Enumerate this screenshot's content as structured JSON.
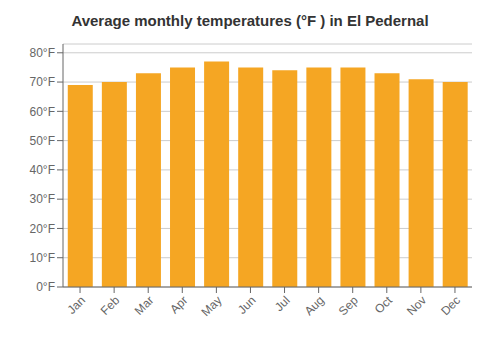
{
  "chart_data": {
    "type": "bar",
    "title": "Average monthly temperatures (°F ) in El Pedernal",
    "categories": [
      "Jan",
      "Feb",
      "Mar",
      "Apr",
      "May",
      "Jun",
      "Jul",
      "Aug",
      "Sep",
      "Oct",
      "Nov",
      "Dec"
    ],
    "values": [
      69,
      70,
      73,
      75,
      77,
      75,
      74,
      75,
      75,
      73,
      71,
      70
    ],
    "color": "#F5A623",
    "ylim": [
      0,
      83
    ],
    "yticks": [
      {
        "value": 0,
        "label": "0°F"
      },
      {
        "value": 10,
        "label": "10°F"
      },
      {
        "value": 20,
        "label": "20°F"
      },
      {
        "value": 30,
        "label": "30°F"
      },
      {
        "value": 40,
        "label": "40°F"
      },
      {
        "value": 50,
        "label": "50°F"
      },
      {
        "value": 60,
        "label": "60°F"
      },
      {
        "value": 70,
        "label": "70°F"
      },
      {
        "value": 80,
        "label": "80°F"
      }
    ],
    "grid": true
  }
}
